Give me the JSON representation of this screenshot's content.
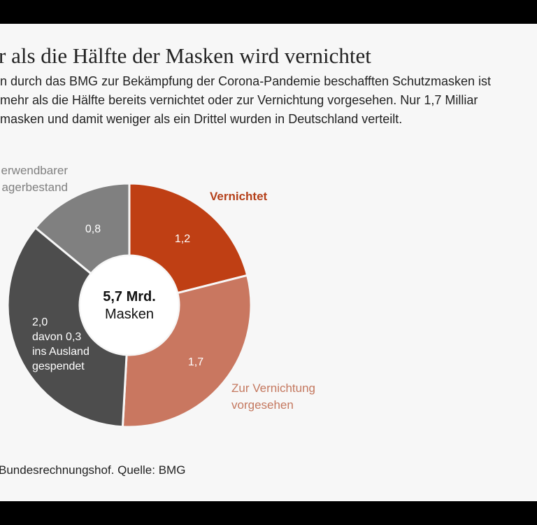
{
  "title": "r als die Hälfte der Masken wird vernichtet",
  "subtitle_lines": [
    "n durch das BMG zur Bekämpfung der Corona-Pandemie beschafften Schutzmasken ist",
    " mehr als die Hälfte bereits vernichtet oder zur Vernichtung vorgesehen. Nur 1,7 Milliar",
    "masken und damit weniger als ein Drittel wurden in Deutschland verteilt."
  ],
  "source": "Bundesrechnungshof. Quelle: BMG",
  "chart_data": {
    "type": "pie",
    "variant": "donut",
    "center_label": {
      "value": "5,7 Mrd.",
      "unit": "Masken"
    },
    "total": 5.7,
    "slices": [
      {
        "name": "Vernichtet",
        "value": 1.2,
        "label": "1,2",
        "color": "#bf3f14",
        "name_color": "#b5401a"
      },
      {
        "name_lines": [
          "Zur Vernichtung",
          "vorgesehen"
        ],
        "value": 1.7,
        "label": "1,7",
        "color": "#c97760",
        "name_color": "#c4785f"
      },
      {
        "value": 2.0,
        "label_lines": [
          "2,0",
          "davon 0,3",
          "ins Ausland",
          "gespendet"
        ],
        "color": "#4d4d4d"
      },
      {
        "name_lines": [
          "erwendbarer",
          "agerbestand"
        ],
        "value": 0.8,
        "label": "0,8",
        "color": "#808080",
        "name_color": "#808080"
      }
    ],
    "start": "top",
    "direction": "clockwise"
  }
}
